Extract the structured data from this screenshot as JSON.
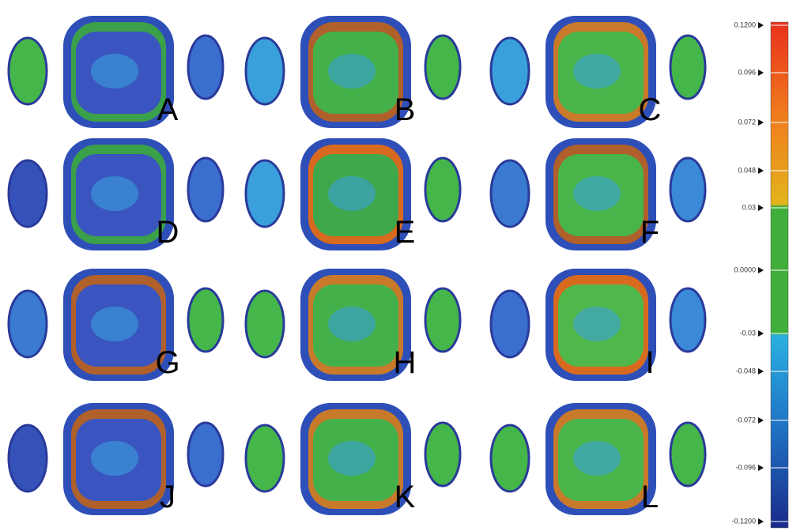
{
  "panels": [
    {
      "label": "A"
    },
    {
      "label": "B"
    },
    {
      "label": "C"
    },
    {
      "label": "D"
    },
    {
      "label": "E"
    },
    {
      "label": "F"
    },
    {
      "label": "G"
    },
    {
      "label": "H"
    },
    {
      "label": "I"
    },
    {
      "label": "J"
    },
    {
      "label": "K"
    },
    {
      "label": "L"
    }
  ],
  "color_scale": {
    "ticks": [
      "0.1200",
      "0.096",
      "0.072",
      "0.048",
      "0.03",
      "0.0000",
      "-0.03",
      "-0.048",
      "-0.072",
      "-0.096",
      "-0.1200"
    ]
  }
}
